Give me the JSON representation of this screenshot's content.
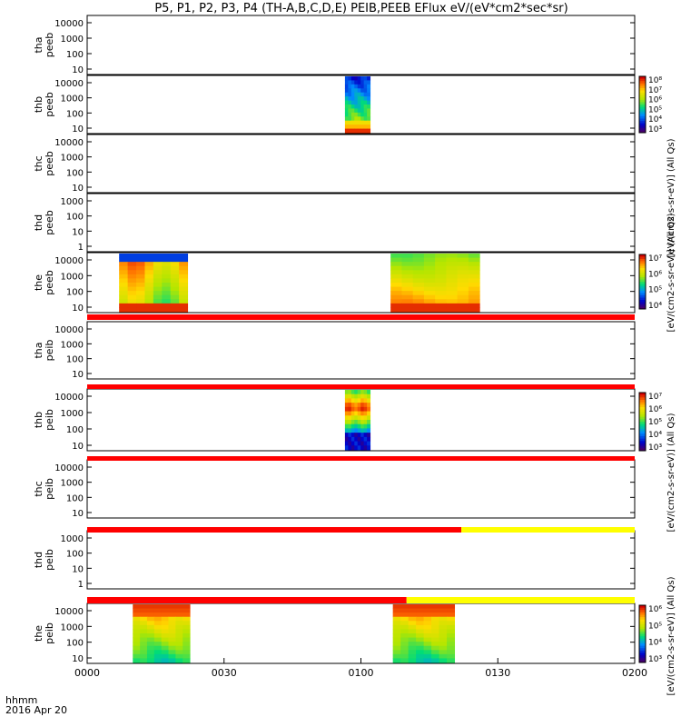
{
  "chart_data": {
    "type": "heatmap",
    "title": "P5, P1, P2, P3, P4 (TH-A,B,C,D,E) PEIB,PEEB EFlux eV/(eV*cm2*sec*sr)",
    "x_tick_labels": [
      "0000",
      "0030",
      "0100",
      "0130",
      "0200"
    ],
    "x_range_minutes": [
      0,
      120
    ],
    "time_label": "hhmm",
    "date_label": "2016 Apr 20",
    "colorbar_label": "[eV/(cm2-s-sr-eV)] (All Qs)",
    "colors": {
      "red": "#ff0000",
      "yellow": "#ffff00",
      "black": "#000000"
    },
    "panels": [
      {
        "id": "tha_peeb",
        "ylabel": [
          "tha",
          "peeb"
        ],
        "yticks": [
          "10000",
          "1000",
          "100",
          "10"
        ],
        "blocks": [],
        "colorbar": null
      },
      {
        "id": "thb_peeb",
        "ylabel": [
          "thb",
          "peeb"
        ],
        "yticks": [
          "10000",
          "1000",
          "100",
          "10"
        ],
        "blocks": [
          {
            "t_start": 56.5,
            "t_end": 62.0,
            "pattern": "low-energy-hot"
          }
        ],
        "colorbar": {
          "ticks": [
            "10⁸",
            "10⁷",
            "10⁶",
            "10⁵",
            "10⁴",
            "10³"
          ]
        }
      },
      {
        "id": "thc_peeb",
        "ylabel": [
          "thc",
          "peeb"
        ],
        "yticks": [
          "10000",
          "1000",
          "100",
          "10"
        ],
        "blocks": [],
        "colorbar": null
      },
      {
        "id": "thd_peeb",
        "ylabel": [
          "thd",
          "peeb"
        ],
        "yticks": [
          "1000",
          "100",
          "10",
          "1"
        ],
        "blocks": [],
        "colorbar": null
      },
      {
        "id": "the_peeb",
        "ylabel": [
          "the",
          "peeb"
        ],
        "yticks": [
          "10000",
          "1000",
          "100",
          "10"
        ],
        "blocks": [
          {
            "t_start": 7.0,
            "t_end": 22.0,
            "pattern": "mixed"
          },
          {
            "t_start": 66.5,
            "t_end": 86.0,
            "pattern": "warm-gradient"
          }
        ],
        "colorbar": {
          "ticks": [
            "10⁷",
            "10⁶",
            "10⁵",
            "10⁴"
          ]
        }
      },
      {
        "id": "tha_peib",
        "ylabel": [
          "tha",
          "peib"
        ],
        "yticks": [
          "10000",
          "1000",
          "100",
          "10"
        ],
        "blocks": [],
        "colorbar": null
      },
      {
        "id": "thb_peib",
        "ylabel": [
          "thb",
          "peib"
        ],
        "yticks": [
          "10000",
          "1000",
          "100",
          "10"
        ],
        "blocks": [
          {
            "t_start": 56.5,
            "t_end": 62.0,
            "pattern": "ion-band"
          }
        ],
        "colorbar": {
          "ticks": [
            "10⁷",
            "10⁶",
            "10⁵",
            "10⁴",
            "10³"
          ]
        }
      },
      {
        "id": "thc_peib",
        "ylabel": [
          "thc",
          "peib"
        ],
        "yticks": [
          "10000",
          "1000",
          "100",
          "10"
        ],
        "blocks": [],
        "colorbar": null
      },
      {
        "id": "thd_peib",
        "ylabel": [
          "thd",
          "peib"
        ],
        "yticks": [
          "1000",
          "100",
          "10",
          "1"
        ],
        "blocks": [],
        "colorbar": null
      },
      {
        "id": "the_peib",
        "ylabel": [
          "the",
          "peib"
        ],
        "yticks": [
          "10000",
          "1000",
          "100",
          "10"
        ],
        "blocks": [
          {
            "t_start": 10.0,
            "t_end": 22.5,
            "pattern": "top-hot-green-low"
          },
          {
            "t_start": 67.0,
            "t_end": 80.5,
            "pattern": "top-hot-green-low"
          }
        ],
        "colorbar": {
          "ticks": [
            "10⁶",
            "10⁵",
            "10⁴",
            "10³"
          ]
        }
      }
    ],
    "mode_bars": [
      {
        "between": [
          "the_peeb",
          "tha_peib"
        ],
        "segments": [
          {
            "t_start": 0,
            "t_end": 120,
            "color": "red"
          }
        ]
      },
      {
        "between": [
          "tha_peib",
          "thb_peib"
        ],
        "segments": [
          {
            "t_start": 0,
            "t_end": 120,
            "color": "red"
          }
        ]
      },
      {
        "between": [
          "thb_peib",
          "thc_peib"
        ],
        "segments": [
          {
            "t_start": 0,
            "t_end": 120,
            "color": "red"
          }
        ]
      },
      {
        "between": [
          "thc_peib",
          "thd_peib"
        ],
        "segments": [
          {
            "t_start": 0,
            "t_end": 82,
            "color": "red"
          },
          {
            "t_start": 82,
            "t_end": 120,
            "color": "yellow"
          }
        ]
      },
      {
        "between": [
          "thd_peib",
          "the_peib"
        ],
        "segments": [
          {
            "t_start": 0,
            "t_end": 70,
            "color": "red"
          },
          {
            "t_start": 70,
            "t_end": 120,
            "color": "yellow"
          }
        ]
      }
    ]
  }
}
